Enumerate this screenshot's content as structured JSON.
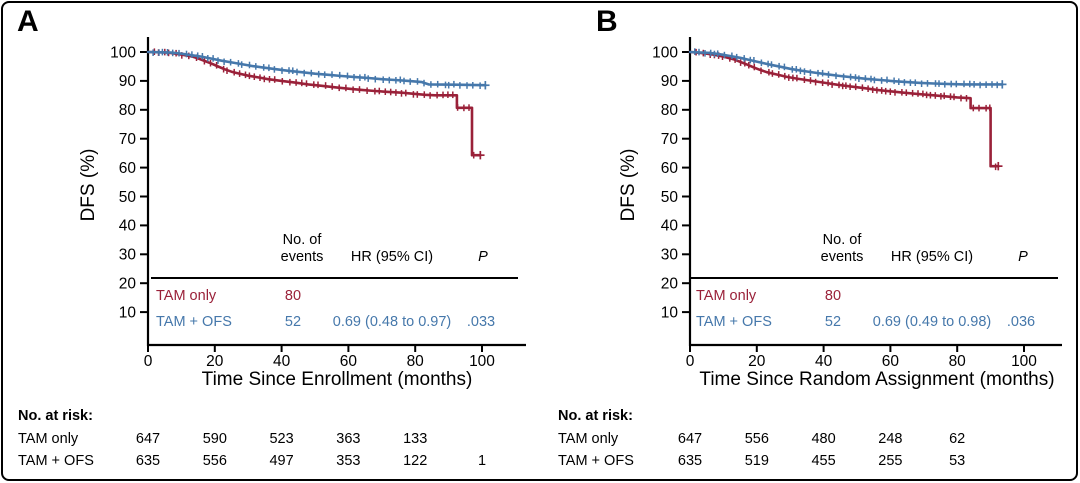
{
  "colors": {
    "tam_only": "#9A2139",
    "tam_plus_ofs": "#4678AB",
    "axis": "#000000",
    "background": "#FFFFFF"
  },
  "chart_data": [
    {
      "type": "line",
      "subtype": "kaplan-meier-step",
      "panel_label": "A",
      "xlabel": "Time Since Enrollment (months)",
      "ylabel": "DFS (%)",
      "xticks": [
        0,
        20,
        40,
        60,
        80,
        100
      ],
      "yticks": [
        100,
        90,
        80,
        70,
        60,
        50,
        40,
        30,
        20,
        10
      ],
      "xlim": [
        0,
        112
      ],
      "ylim": [
        0,
        105
      ],
      "grid": false,
      "legend_position": "in-plot-table",
      "series": [
        {
          "name": "TAM only",
          "color": "#9A2139",
          "points": [
            [
              0,
              100
            ],
            [
              6,
              99.8
            ],
            [
              10,
              99.1
            ],
            [
              13,
              98.5
            ],
            [
              15,
              97.8
            ],
            [
              17,
              96.9
            ],
            [
              19,
              96
            ],
            [
              21,
              95
            ],
            [
              23,
              94
            ],
            [
              25,
              93.2
            ],
            [
              27,
              92.6
            ],
            [
              30,
              91.8
            ],
            [
              33,
              91.2
            ],
            [
              36,
              90.6
            ],
            [
              40,
              90
            ],
            [
              44,
              89.4
            ],
            [
              48,
              88.8
            ],
            [
              52,
              88.3
            ],
            [
              56,
              87.8
            ],
            [
              60,
              87.3
            ],
            [
              64,
              86.9
            ],
            [
              68,
              86.5
            ],
            [
              72,
              86.2
            ],
            [
              76,
              85.9
            ],
            [
              80,
              85.5
            ],
            [
              83,
              85.2
            ],
            [
              86,
              85
            ],
            [
              92.5,
              85
            ],
            [
              92.5,
              80.7
            ],
            [
              97,
              80.7
            ],
            [
              97,
              64.3
            ],
            [
              99.5,
              64.3
            ]
          ]
        },
        {
          "name": "TAM + OFS",
          "color": "#4678AB",
          "points": [
            [
              0,
              100
            ],
            [
              7,
              99.8
            ],
            [
              10,
              99.4
            ],
            [
              13,
              98.9
            ],
            [
              16,
              98.4
            ],
            [
              19,
              97.7
            ],
            [
              22,
              97
            ],
            [
              25,
              96.4
            ],
            [
              28,
              95.8
            ],
            [
              31,
              95.2
            ],
            [
              34,
              94.7
            ],
            [
              38,
              94.1
            ],
            [
              42,
              93.5
            ],
            [
              46,
              93
            ],
            [
              50,
              92.5
            ],
            [
              54,
              92.1
            ],
            [
              58,
              91.7
            ],
            [
              62,
              91.3
            ],
            [
              66,
              91
            ],
            [
              70,
              90.6
            ],
            [
              74,
              90.3
            ],
            [
              78,
              90
            ],
            [
              82,
              89.6
            ],
            [
              84,
              88.8
            ],
            [
              92,
              88.7
            ],
            [
              101,
              88.5
            ]
          ]
        }
      ],
      "stats_table": {
        "col_events_header": [
          "No. of",
          "events"
        ],
        "col_hr_header": "HR (95% CI)",
        "col_p_header": "P",
        "rows": [
          {
            "name": "TAM only",
            "events": "80",
            "hr": "",
            "p": ""
          },
          {
            "name": "TAM + OFS",
            "events": "52",
            "hr": "0.69 (0.48 to 0.97)",
            "p": ".033"
          }
        ]
      },
      "at_risk": {
        "title": "No. at risk:",
        "rows": [
          {
            "name": "TAM only",
            "counts": [
              "647",
              "590",
              "523",
              "363",
              "133"
            ]
          },
          {
            "name": "TAM + OFS",
            "counts": [
              "635",
              "556",
              "497",
              "353",
              "122",
              "1"
            ]
          }
        ]
      }
    },
    {
      "type": "line",
      "subtype": "kaplan-meier-step",
      "panel_label": "B",
      "xlabel": "Time Since Random Assignment (months)",
      "ylabel": "DFS (%)",
      "xticks": [
        0,
        20,
        40,
        60,
        80,
        100
      ],
      "yticks": [
        100,
        90,
        80,
        70,
        60,
        50,
        40,
        30,
        20,
        10
      ],
      "xlim": [
        0,
        112
      ],
      "ylim": [
        0,
        105
      ],
      "grid": false,
      "legend_position": "in-plot-table",
      "series": [
        {
          "name": "TAM only",
          "color": "#9A2139",
          "points": [
            [
              0,
              100
            ],
            [
              4,
              99.6
            ],
            [
              7,
              99.1
            ],
            [
              10,
              98.4
            ],
            [
              13,
              97.5
            ],
            [
              15,
              96.6
            ],
            [
              17,
              95.7
            ],
            [
              19,
              94.7
            ],
            [
              21,
              93.8
            ],
            [
              23,
              93
            ],
            [
              26,
              92.2
            ],
            [
              29,
              91.4
            ],
            [
              32,
              90.8
            ],
            [
              36,
              90.1
            ],
            [
              40,
              89.4
            ],
            [
              44,
              88.7
            ],
            [
              48,
              88.1
            ],
            [
              52,
              87.5
            ],
            [
              56,
              86.9
            ],
            [
              60,
              86.4
            ],
            [
              64,
              85.9
            ],
            [
              68,
              85.5
            ],
            [
              72,
              85.1
            ],
            [
              76,
              84.7
            ],
            [
              80,
              84.3
            ],
            [
              84,
              84
            ],
            [
              84,
              80.6
            ],
            [
              90,
              80.6
            ],
            [
              90,
              60.5
            ],
            [
              92.3,
              60.5
            ]
          ]
        },
        {
          "name": "TAM + OFS",
          "color": "#4678AB",
          "points": [
            [
              0,
              100
            ],
            [
              6,
              99.7
            ],
            [
              9,
              99.2
            ],
            [
              12,
              98.6
            ],
            [
              15,
              98
            ],
            [
              18,
              97.2
            ],
            [
              21,
              96.4
            ],
            [
              24,
              95.6
            ],
            [
              27,
              94.9
            ],
            [
              30,
              94.2
            ],
            [
              33,
              93.6
            ],
            [
              37,
              92.9
            ],
            [
              41,
              92.3
            ],
            [
              45,
              91.7
            ],
            [
              49,
              91.2
            ],
            [
              53,
              90.7
            ],
            [
              57,
              90.3
            ],
            [
              61,
              89.9
            ],
            [
              65,
              89.6
            ],
            [
              69,
              89.3
            ],
            [
              73,
              89.1
            ],
            [
              78,
              88.9
            ],
            [
              82,
              88.8
            ],
            [
              93.5,
              88.8
            ]
          ]
        }
      ],
      "stats_table": {
        "col_events_header": [
          "No. of",
          "events"
        ],
        "col_hr_header": "HR (95% CI)",
        "col_p_header": "P",
        "rows": [
          {
            "name": "TAM only",
            "events": "80",
            "hr": "",
            "p": ""
          },
          {
            "name": "TAM + OFS",
            "events": "52",
            "hr": "0.69 (0.49 to 0.98)",
            "p": ".036"
          }
        ]
      },
      "at_risk": {
        "title": "No. at risk:",
        "rows": [
          {
            "name": "TAM only",
            "counts": [
              "647",
              "556",
              "480",
              "248",
              "62"
            ]
          },
          {
            "name": "TAM + OFS",
            "counts": [
              "635",
              "519",
              "455",
              "255",
              "53"
            ]
          }
        ]
      }
    }
  ]
}
